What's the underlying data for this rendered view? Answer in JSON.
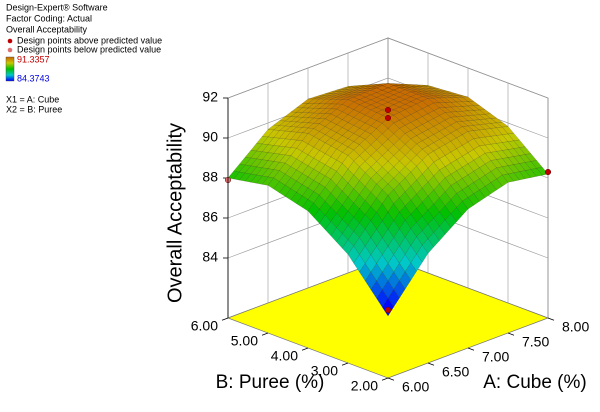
{
  "chart_data": {
    "type": "surface3d",
    "header": [
      "Design-Expert® Software",
      "Factor Coding: Actual",
      "Overall Acceptability"
    ],
    "factors": [
      "X1 = A: Cube",
      "X2 = B: Puree"
    ],
    "color_range": [
      84.3743,
      91.3357
    ],
    "colormap": [
      "#0000ff",
      "#00c8c8",
      "#00c000",
      "#c8c800",
      "#c86400"
    ],
    "x_label": "A: Cube (%)",
    "y_label": "B: Puree (%)",
    "z_label": "Overall Acceptability",
    "xlim": [
      6,
      8
    ],
    "xticks": [
      {
        "value": 6,
        "label": "6.00"
      },
      {
        "value": 6.5,
        "label": "6.50"
      },
      {
        "value": 7,
        "label": "7.00"
      },
      {
        "value": 7.5,
        "label": "7.50"
      },
      {
        "value": 8,
        "label": "8.00"
      }
    ],
    "ylim": [
      2,
      6
    ],
    "yticks": [
      {
        "value": 2,
        "label": "2.00"
      },
      {
        "value": 3,
        "label": "3.00"
      },
      {
        "value": 4,
        "label": "4.00"
      },
      {
        "value": 5,
        "label": "5.00"
      },
      {
        "value": 6,
        "label": "6.00"
      }
    ],
    "zlim": [
      81,
      92
    ],
    "zticks": [
      84,
      86,
      88,
      90,
      92
    ],
    "floor_color": "#ffff00",
    "x": [
      6,
      6.5,
      7,
      7.5,
      8
    ],
    "y": [
      2,
      3,
      4,
      5,
      6
    ],
    "z": [
      [
        84.1,
        86.48,
        87.95,
        88.53,
        88.2
      ],
      [
        86.43,
        88.63,
        89.93,
        90.33,
        89.83
      ],
      [
        87.85,
        89.88,
        91.0,
        91.23,
        90.55
      ],
      [
        88.38,
        90.23,
        91.18,
        91.23,
        90.38
      ],
      [
        88.0,
        89.68,
        90.45,
        90.33,
        89.3
      ]
    ],
    "series": [
      {
        "name": "Design points above predicted value",
        "color": "#c00000",
        "points": [
          {
            "x": 7,
            "y": 4,
            "value": 91.4
          },
          {
            "x": 7,
            "y": 4,
            "value": 91.0
          },
          {
            "x": 8,
            "y": 2,
            "value": 88.3
          },
          {
            "x": 6,
            "y": 2,
            "value": 84.4
          }
        ]
      },
      {
        "name": "Design points below predicted value",
        "color": "#e07070",
        "points": [
          {
            "x": 6,
            "y": 6,
            "value": 87.9
          }
        ]
      }
    ]
  }
}
